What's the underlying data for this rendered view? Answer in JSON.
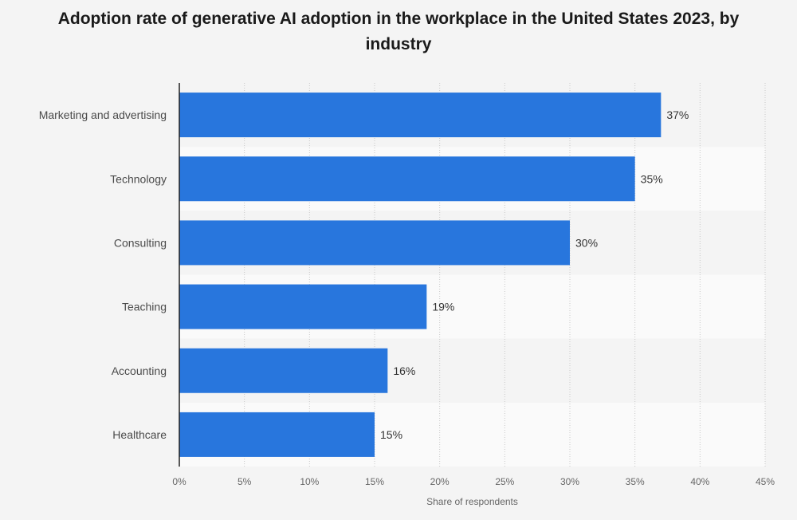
{
  "chart_data": {
    "type": "bar",
    "orientation": "horizontal",
    "title": "Adoption rate of generative AI adoption in the workplace in the United States 2023, by industry",
    "categories": [
      "Marketing and advertising",
      "Technology",
      "Consulting",
      "Teaching",
      "Accounting",
      "Healthcare"
    ],
    "values": [
      37,
      35,
      30,
      19,
      16,
      15
    ],
    "value_labels": [
      "37%",
      "35%",
      "30%",
      "19%",
      "16%",
      "15%"
    ],
    "xlabel": "Share of respondents",
    "ylabel": "",
    "xlim": [
      0,
      45
    ],
    "x_ticks": [
      0,
      5,
      10,
      15,
      20,
      25,
      30,
      35,
      40,
      45
    ],
    "x_tick_labels": [
      "0%",
      "5%",
      "10%",
      "15%",
      "20%",
      "25%",
      "30%",
      "35%",
      "40%",
      "45%"
    ],
    "grid": true,
    "bar_color": "#2876dd"
  }
}
